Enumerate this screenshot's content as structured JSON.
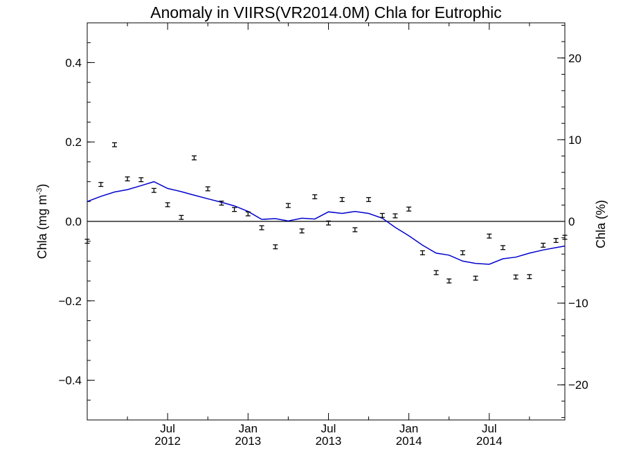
{
  "chart_data": {
    "type": "scatter",
    "title": "Anomaly in VIIRS(VR2014.0M) Chla for Eutrophic",
    "ylabel_left_base": "Chla (mg m",
    "ylabel_left_exp": "-3",
    "ylabel_left_close": ")",
    "ylabel_right": "Chla (%)",
    "xlim": [
      2012.0,
      2014.97
    ],
    "ylim": [
      -0.5,
      0.5
    ],
    "ylim_right": [
      -24.3,
      24.3
    ],
    "y_ticks": [
      {
        "value": 0.4,
        "label": "0.4"
      },
      {
        "value": 0.2,
        "label": "0.2"
      },
      {
        "value": 0.0,
        "label": "0.0"
      },
      {
        "value": -0.2,
        "label": "−0.2"
      },
      {
        "value": -0.4,
        "label": "−0.4"
      }
    ],
    "y_minor_step": 0.05,
    "y_right_ticks": [
      {
        "value": 20,
        "label": "20"
      },
      {
        "value": 10,
        "label": "10"
      },
      {
        "value": 0,
        "label": "0"
      },
      {
        "value": -10,
        "label": "−10"
      },
      {
        "value": -20,
        "label": "−20"
      }
    ],
    "y_right_minor_step": 2,
    "x_ticks": [
      {
        "value": 2012.5,
        "month": "Jul",
        "year": "2012"
      },
      {
        "value": 2013.0,
        "month": "Jan",
        "year": "2013"
      },
      {
        "value": 2013.5,
        "month": "Jul",
        "year": "2013"
      },
      {
        "value": 2014.0,
        "month": "Jan",
        "year": "2014"
      },
      {
        "value": 2014.5,
        "month": "Jul",
        "year": "2014"
      }
    ],
    "x_minor_ticks": [
      2012.25,
      2012.75,
      2013.25,
      2013.75,
      2014.25,
      2014.75
    ],
    "error_bar_halfwidth": 0.005,
    "series": [
      {
        "kind": "points",
        "x": [
          2012.0,
          2012.085,
          2012.17,
          2012.25,
          2012.335,
          2012.415,
          2012.5,
          2012.585,
          2012.665,
          2012.75,
          2012.835,
          2012.915,
          2013.0,
          2013.085,
          2013.17,
          2013.25,
          2013.335,
          2013.415,
          2013.5,
          2013.585,
          2013.665,
          2013.75,
          2013.835,
          2013.915,
          2014.0,
          2014.085,
          2014.17,
          2014.25,
          2014.335,
          2014.415,
          2014.5,
          2014.585,
          2014.665,
          2014.75,
          2014.835,
          2014.915,
          2014.97
        ],
        "y": [
          -0.05,
          0.093,
          0.193,
          0.107,
          0.105,
          0.078,
          0.042,
          0.01,
          0.16,
          0.082,
          0.046,
          0.03,
          0.019,
          -0.016,
          -0.064,
          0.04,
          -0.024,
          0.062,
          -0.004,
          0.055,
          -0.021,
          0.055,
          0.015,
          0.014,
          0.031,
          -0.079,
          -0.129,
          -0.15,
          -0.079,
          -0.143,
          -0.037,
          -0.066,
          -0.14,
          -0.139,
          -0.06,
          -0.048,
          -0.04
        ]
      },
      {
        "kind": "line",
        "color": "#0000cc",
        "x": [
          2012.0,
          2012.085,
          2012.17,
          2012.25,
          2012.335,
          2012.415,
          2012.5,
          2012.585,
          2012.665,
          2012.75,
          2012.835,
          2012.915,
          2013.0,
          2013.085,
          2013.17,
          2013.25,
          2013.335,
          2013.415,
          2013.5,
          2013.585,
          2013.665,
          2013.75,
          2013.835,
          2013.915,
          2014.0,
          2014.085,
          2014.17,
          2014.25,
          2014.335,
          2014.415,
          2014.5,
          2014.585,
          2014.665,
          2014.75,
          2014.835,
          2014.915,
          2014.97
        ],
        "y": [
          0.05,
          0.063,
          0.074,
          0.08,
          0.09,
          0.1,
          0.083,
          0.075,
          0.066,
          0.057,
          0.048,
          0.039,
          0.025,
          0.005,
          0.007,
          0.001,
          0.008,
          0.006,
          0.024,
          0.02,
          0.025,
          0.02,
          0.008,
          -0.015,
          -0.036,
          -0.06,
          -0.08,
          -0.085,
          -0.1,
          -0.106,
          -0.108,
          -0.094,
          -0.09,
          -0.08,
          -0.072,
          -0.066,
          -0.062
        ]
      }
    ]
  }
}
